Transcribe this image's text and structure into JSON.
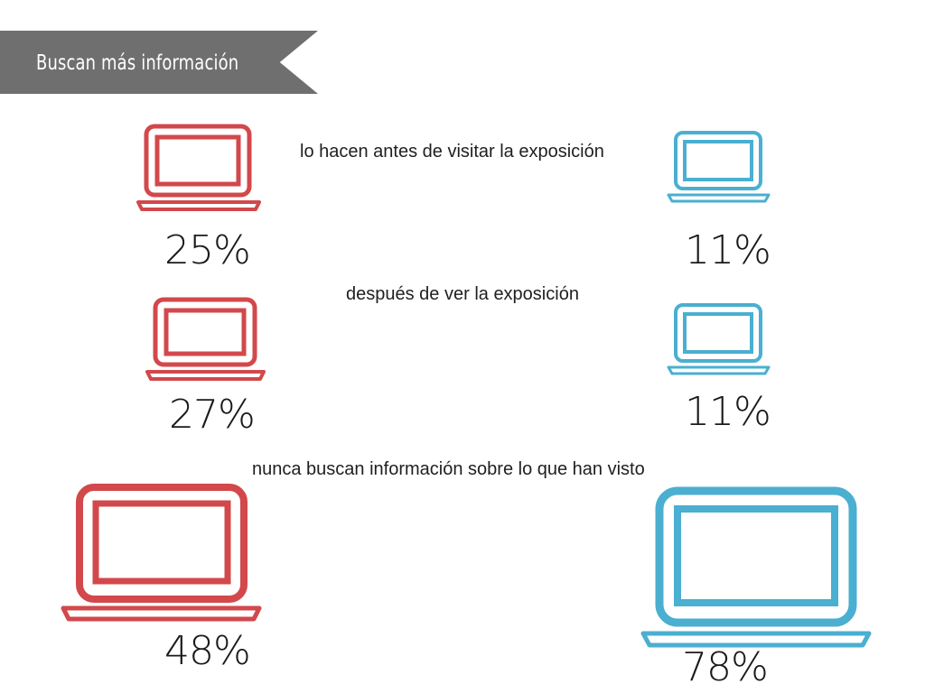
{
  "banner": {
    "title": "Buscan más información"
  },
  "colors": {
    "left": "#d2484b",
    "right": "#4aafd0",
    "banner": "#6f6f6f"
  },
  "icons": {
    "device": "laptop-icon"
  },
  "rows": [
    {
      "caption": "lo hacen antes de visitar la exposición",
      "left_value": "25%",
      "right_value": "11%"
    },
    {
      "caption": "después de ver la exposición",
      "left_value": "27%",
      "right_value": "11%"
    },
    {
      "caption": "nunca buscan información sobre lo que han visto",
      "left_value": "48%",
      "right_value": "78%"
    }
  ]
}
